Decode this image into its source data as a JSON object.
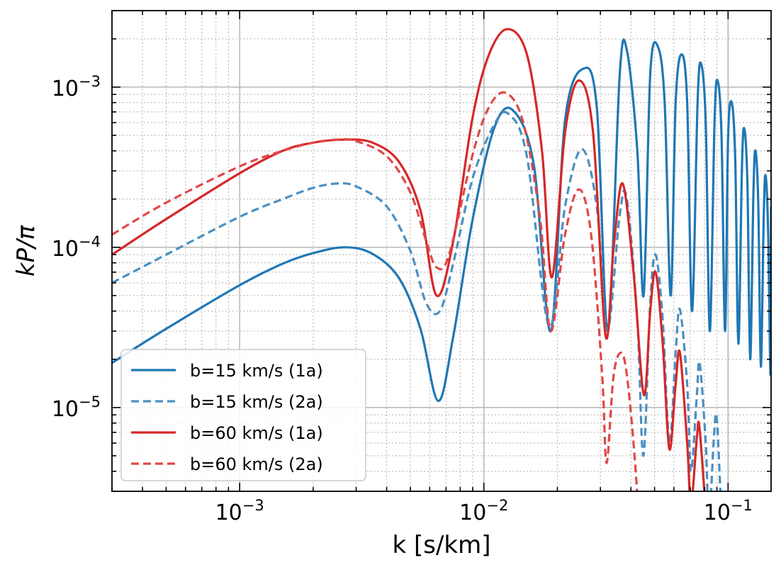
{
  "chart_data": {
    "type": "line",
    "xlabel": "k [s/km]",
    "ylabel": "kP/π",
    "xscale": "log",
    "yscale": "log",
    "xlim": [
      0.0003,
      0.15
    ],
    "ylim": [
      3e-06,
      0.003
    ],
    "grid": true,
    "legend_position": "bottom-left",
    "x_ticks": [
      {
        "value": 0.001,
        "base": "10",
        "exp": "−3"
      },
      {
        "value": 0.01,
        "base": "10",
        "exp": "−2"
      },
      {
        "value": 0.1,
        "base": "10",
        "exp": "−1"
      }
    ],
    "y_ticks": [
      {
        "value": 1e-05,
        "base": "10",
        "exp": "−5"
      },
      {
        "value": 0.0001,
        "base": "10",
        "exp": "−4"
      },
      {
        "value": 0.001,
        "base": "10",
        "exp": "−3"
      }
    ],
    "series": [
      {
        "name": "b=15 km/s (1a)",
        "color": "#1f77b4",
        "dash": "solid",
        "x": [
          0.0003,
          0.0005,
          0.001,
          0.0015,
          0.002,
          0.0027,
          0.0035,
          0.0045,
          0.0055,
          0.0065,
          0.0075,
          0.009,
          0.011,
          0.0131,
          0.016,
          0.0188,
          0.0215,
          0.0255,
          0.029,
          0.0322,
          0.036,
          0.0385,
          0.0425,
          0.0451,
          0.048,
          0.0515,
          0.055,
          0.0582,
          0.061,
          0.0645,
          0.068,
          0.0712,
          0.075,
          0.0775,
          0.081,
          0.0842,
          0.088,
          0.0905,
          0.094,
          0.0972,
          0.1,
          0.1035,
          0.107,
          0.1102,
          0.114,
          0.1165,
          0.12,
          0.1232,
          0.127,
          0.1295,
          0.133,
          0.1362,
          0.14,
          0.1425,
          0.146,
          0.1492,
          0.15
        ],
        "y": [
          1.9e-05,
          3.1e-05,
          5.8e-05,
          7.9e-05,
          9.2e-05,
          0.0001,
          9.1e-05,
          6.4e-05,
          3.1e-05,
          1.1e-05,
          2.8e-05,
          0.00015,
          0.00055,
          0.00072,
          0.00033,
          3e-05,
          0.00062,
          0.0013,
          0.00075,
          3e-05,
          0.0012,
          0.0017,
          0.0004,
          5e-05,
          0.0012,
          0.0018,
          0.0008,
          5e-05,
          0.0008,
          0.0016,
          0.0008,
          4e-05,
          0.0008,
          0.0014,
          0.0006,
          3e-05,
          0.0006,
          0.0011,
          0.0005,
          3e-05,
          0.00048,
          0.0008,
          0.00035,
          2.5e-05,
          0.00032,
          0.00055,
          0.00025,
          2e-05,
          0.00022,
          0.0004,
          0.00018,
          1.8e-05,
          0.00016,
          0.00028,
          0.00012,
          1.6e-05,
          0.00018
        ]
      },
      {
        "name": "b=15 km/s (2a)",
        "color": "#4a90c2",
        "dash": "dashed",
        "x": [
          0.0003,
          0.0005,
          0.001,
          0.0015,
          0.002,
          0.0025,
          0.003,
          0.004,
          0.005,
          0.0058,
          0.0066,
          0.0075,
          0.009,
          0.011,
          0.0126,
          0.015,
          0.0185,
          0.0215,
          0.0252,
          0.029,
          0.032,
          0.036,
          0.0385,
          0.0425,
          0.045,
          0.048,
          0.0505,
          0.054,
          0.0575,
          0.061,
          0.0635,
          0.068,
          0.0705,
          0.0745,
          0.0765,
          0.081,
          0.0835,
          0.0875,
          0.0897,
          0.093,
          0.0955
        ],
        "y": [
          6e-05,
          9e-05,
          0.000155,
          0.0002,
          0.000235,
          0.00025,
          0.00024,
          0.00018,
          9.5e-05,
          4.5e-05,
          4e-05,
          8e-05,
          0.00027,
          0.00058,
          0.00068,
          0.00037,
          3.2e-05,
          0.00018,
          0.00041,
          0.00018,
          3e-05,
          0.00016,
          0.0002,
          3.5e-05,
          5e-06,
          4.5e-05,
          9e-05,
          3.5e-05,
          6e-06,
          2.2e-05,
          4.1e-05,
          1.4e-05,
          4e-06,
          1.2e-05,
          1.9e-05,
          6e-06,
          2e-06,
          6.5e-06,
          8.8e-06,
          3e-06,
          1e-06
        ]
      },
      {
        "name": "b=60 km/s (1a)",
        "color": "#d62728",
        "dash": "solid",
        "x": [
          0.0003,
          0.0005,
          0.001,
          0.0015,
          0.002,
          0.0027,
          0.0035,
          0.0045,
          0.0055,
          0.0064,
          0.0075,
          0.009,
          0.0105,
          0.0125,
          0.015,
          0.0173,
          0.019,
          0.0215,
          0.0245,
          0.028,
          0.0315,
          0.034,
          0.037,
          0.041,
          0.0452,
          0.048,
          0.0505,
          0.054,
          0.0575,
          0.061,
          0.0635,
          0.068,
          0.0705,
          0.0745,
          0.0762,
          0.08,
          0.083
        ],
        "y": [
          9e-05,
          0.00015,
          0.00029,
          0.0004,
          0.00045,
          0.00047,
          0.00045,
          0.00034,
          0.00017,
          5e-05,
          0.00011,
          0.00065,
          0.0016,
          0.0023,
          0.0016,
          0.0004,
          6.5e-05,
          0.00052,
          0.0011,
          0.00052,
          2.8e-05,
          0.0001,
          0.00025,
          7e-05,
          1.2e-05,
          4e-05,
          7e-05,
          2.5e-05,
          5.5e-06,
          1.4e-05,
          2.2e-05,
          6e-06,
          2.5e-06,
          6.5e-06,
          7.7e-06,
          3e-06,
          1.5e-06
        ]
      },
      {
        "name": "b=60 km/s (2a)",
        "color": "#e04848",
        "dash": "dashed",
        "x": [
          0.0003,
          0.0005,
          0.001,
          0.0015,
          0.002,
          0.0025,
          0.003,
          0.004,
          0.005,
          0.0058,
          0.0064,
          0.0072,
          0.009,
          0.0105,
          0.0123,
          0.0145,
          0.017,
          0.0188,
          0.0215,
          0.0245,
          0.0275,
          0.0305,
          0.0318,
          0.034,
          0.0365,
          0.0385,
          0.041,
          0.0432
        ],
        "y": [
          0.00012,
          0.00019,
          0.00032,
          0.0004,
          0.00045,
          0.00047,
          0.00046,
          0.00037,
          0.00022,
          0.00011,
          7.5e-05,
          9e-05,
          0.00038,
          0.00075,
          0.00092,
          0.0006,
          0.00015,
          3e-05,
          0.00012,
          0.00023,
          0.00012,
          1.6e-05,
          4.5e-06,
          1.6e-05,
          2.2e-05,
          1.6e-05,
          6e-06,
          2e-06
        ]
      }
    ]
  }
}
